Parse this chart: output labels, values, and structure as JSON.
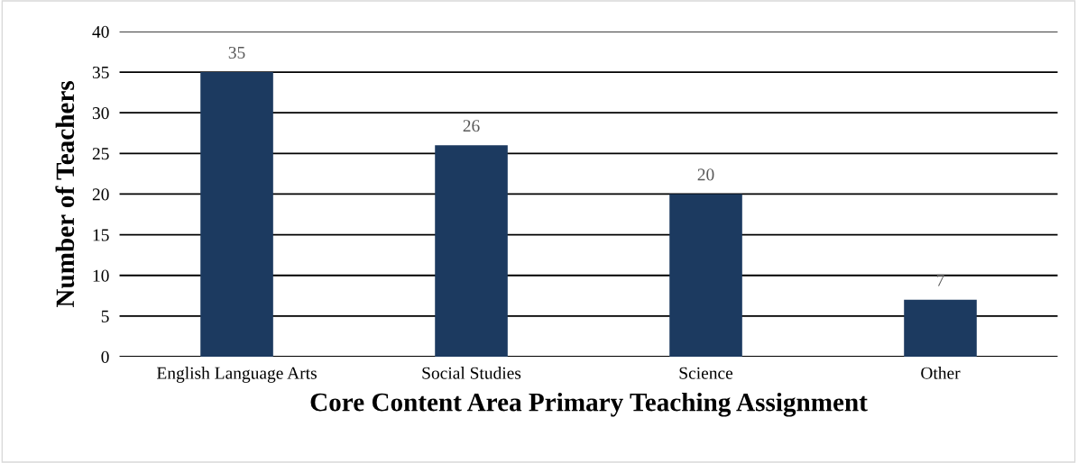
{
  "chart_data": {
    "type": "bar",
    "xlabel": "Core Content Area Primary Teaching Assignment",
    "ylabel": "Number of Teachers",
    "categories": [
      "English Language Arts",
      "Social Studies",
      "Science",
      "Other"
    ],
    "values": [
      35,
      26,
      20,
      7
    ],
    "color": "#1c3a60",
    "ylim": [
      0,
      40
    ],
    "yticks": [
      0,
      5,
      10,
      15,
      20,
      25,
      30,
      35,
      40
    ],
    "grid": "y",
    "data_labels": true
  }
}
